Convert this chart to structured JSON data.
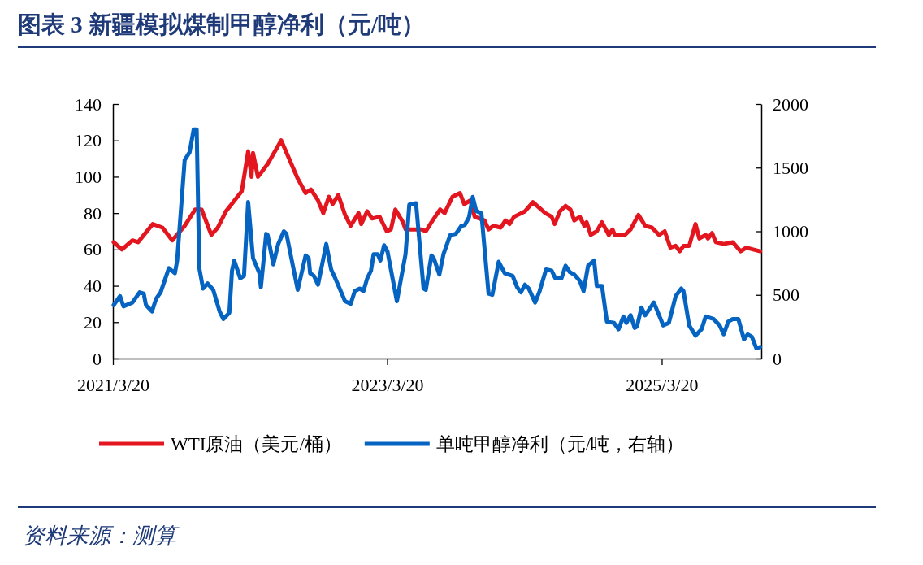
{
  "chart_data": {
    "type": "line",
    "title": "图表 3 新疆模拟煤制甲醇净利（元/吨）",
    "annotations": [
      "资料来源：测算"
    ],
    "xlim": [
      "2021-03-20",
      "2025-12-10"
    ],
    "xticks": [
      {
        "value": "2021-03-20",
        "label": "2021/3/20"
      },
      {
        "value": "2023-03-20",
        "label": "2023/3/20"
      },
      {
        "value": "2025-03-20",
        "label": "2025/3/20"
      }
    ],
    "ylim": [
      0,
      140
    ],
    "yticks": [
      0,
      20,
      40,
      60,
      80,
      100,
      120,
      140
    ],
    "y2lim": [
      0,
      2000
    ],
    "y2ticks": [
      0,
      500,
      1000,
      1500,
      2000
    ],
    "grid": false,
    "legend": "bottom",
    "marker": "none",
    "line_style": "solid",
    "series": [
      {
        "name": "WTI原油（美元/桶）",
        "color": "#e3151f",
        "x": [
          "2021-03-22",
          "2021-04-13",
          "2021-05-11",
          "2021-05-26",
          "2021-07-04",
          "2021-07-30",
          "2021-08-25",
          "2021-09-27",
          "2021-10-25",
          "2021-11-11",
          "2021-12-07",
          "2021-12-24",
          "2022-01-15",
          "2022-02-26",
          "2022-03-15",
          "2022-03-24",
          "2022-03-28",
          "2022-04-10",
          "2022-05-06",
          "2022-06-11",
          "2022-07-04",
          "2022-07-25",
          "2022-08-15",
          "2022-08-29",
          "2022-09-17",
          "2022-10-01",
          "2022-10-16",
          "2022-10-26",
          "2022-11-10",
          "2022-11-28",
          "2022-12-13",
          "2023-01-03",
          "2023-01-10",
          "2023-01-26",
          "2023-02-08",
          "2023-02-28",
          "2023-03-19",
          "2023-03-30",
          "2023-04-11",
          "2023-05-01",
          "2023-05-08",
          "2023-05-29",
          "2023-06-20",
          "2023-07-01",
          "2023-07-16",
          "2023-08-08",
          "2023-08-20",
          "2023-09-10",
          "2023-09-30",
          "2023-10-11",
          "2023-10-28",
          "2023-11-08",
          "2023-12-04",
          "2023-12-15",
          "2023-12-28",
          "2024-01-16",
          "2024-01-29",
          "2024-02-09",
          "2024-02-21",
          "2024-03-21",
          "2024-04-11",
          "2024-05-03",
          "2024-05-14",
          "2024-05-31",
          "2024-06-08",
          "2024-06-22",
          "2024-07-07",
          "2024-07-20",
          "2024-07-30",
          "2024-08-14",
          "2024-08-26",
          "2024-09-01",
          "2024-09-12",
          "2024-09-28",
          "2024-10-12",
          "2024-10-30",
          "2024-11-09",
          "2024-11-15",
          "2024-12-12",
          "2024-12-27",
          "2025-01-17",
          "2025-02-04",
          "2025-02-22",
          "2025-03-13",
          "2025-03-28",
          "2025-04-12",
          "2025-04-26",
          "2025-05-07",
          "2025-05-17",
          "2025-06-01",
          "2025-06-18",
          "2025-06-28",
          "2025-07-15",
          "2025-07-21",
          "2025-08-01",
          "2025-08-11",
          "2025-09-01",
          "2025-09-25",
          "2025-10-16",
          "2025-10-31",
          "2025-12-07"
        ],
        "values": [
          64,
          60,
          65,
          64,
          74,
          72,
          65,
          73,
          82,
          82,
          68,
          72,
          81,
          92,
          114,
          100,
          113,
          100,
          107,
          120,
          109,
          99,
          91,
          93,
          87,
          80,
          89,
          85,
          90,
          79,
          73,
          80,
          74,
          81,
          77,
          78,
          70,
          71,
          82,
          75,
          71,
          71,
          71,
          70,
          75,
          82,
          80,
          89,
          91,
          85,
          87,
          78,
          76,
          71,
          73,
          72,
          76,
          74,
          78,
          81,
          86,
          82,
          80,
          78,
          74,
          81,
          84,
          82,
          76,
          78,
          73,
          75,
          68,
          70,
          75,
          68,
          71,
          68,
          68,
          71,
          79,
          73,
          72,
          68,
          70,
          61,
          62,
          59,
          62,
          62,
          74,
          66,
          68,
          66,
          69,
          64,
          63,
          64,
          59,
          61,
          59
        ]
      },
      {
        "name": "单吨甲醇净利（元/吨，右轴）",
        "color": "#0563c1",
        "axis": "y2",
        "x": [
          "2021-03-22",
          "2021-04-08",
          "2021-04-17",
          "2021-05-11",
          "2021-05-30",
          "2021-06-10",
          "2021-06-16",
          "2021-07-02",
          "2021-07-13",
          "2021-07-25",
          "2021-08-16",
          "2021-09-01",
          "2021-09-07",
          "2021-09-27",
          "2021-10-10",
          "2021-10-21",
          "2021-10-29",
          "2021-11-05",
          "2021-11-15",
          "2021-11-27",
          "2021-12-12",
          "2021-12-29",
          "2022-01-08",
          "2022-01-24",
          "2022-01-31",
          "2022-02-06",
          "2022-02-22",
          "2022-03-04",
          "2022-03-15",
          "2022-03-28",
          "2022-04-14",
          "2022-04-18",
          "2022-05-02",
          "2022-05-06",
          "2022-05-21",
          "2022-06-03",
          "2022-06-18",
          "2022-06-25",
          "2022-07-25",
          "2022-08-15",
          "2022-08-23",
          "2022-08-27",
          "2022-09-06",
          "2022-09-17",
          "2022-10-09",
          "2022-10-22",
          "2022-11-02",
          "2022-11-28",
          "2022-12-13",
          "2022-12-24",
          "2023-01-06",
          "2023-01-16",
          "2023-01-26",
          "2023-02-05",
          "2023-02-12",
          "2023-02-23",
          "2023-03-02",
          "2023-03-12",
          "2023-03-21",
          "2023-04-15",
          "2023-05-08",
          "2023-05-18",
          "2023-06-05",
          "2023-06-25",
          "2023-07-01",
          "2023-07-16",
          "2023-07-22",
          "2023-08-06",
          "2023-08-17",
          "2023-09-04",
          "2023-09-19",
          "2023-10-03",
          "2023-10-13",
          "2023-10-24",
          "2023-11-03",
          "2023-11-12",
          "2023-11-26",
          "2023-12-15",
          "2023-12-25",
          "2024-01-11",
          "2024-01-27",
          "2024-02-17",
          "2024-02-29",
          "2024-03-10",
          "2024-03-21",
          "2024-03-31",
          "2024-04-17",
          "2024-04-29",
          "2024-05-16",
          "2024-05-31",
          "2024-06-10",
          "2024-06-26",
          "2024-07-07",
          "2024-07-18",
          "2024-07-30",
          "2024-08-14",
          "2024-08-24",
          "2024-09-05",
          "2024-09-21",
          "2024-09-28",
          "2024-10-12",
          "2024-10-25",
          "2024-11-13",
          "2024-11-25",
          "2024-12-08",
          "2024-12-16",
          "2024-12-27",
          "2025-01-07",
          "2025-01-13",
          "2025-01-25",
          "2025-02-04",
          "2025-02-27",
          "2025-03-24",
          "2025-04-08",
          "2025-04-26",
          "2025-05-11",
          "2025-05-17",
          "2025-06-01",
          "2025-06-18",
          "2025-07-04",
          "2025-07-15",
          "2025-08-05",
          "2025-08-21",
          "2025-09-01",
          "2025-09-13",
          "2025-09-25",
          "2025-10-10",
          "2025-10-25",
          "2025-11-04",
          "2025-11-15",
          "2025-11-27",
          "2025-12-07"
        ],
        "values": [
          420,
          490,
          410,
          440,
          520,
          510,
          420,
          370,
          470,
          520,
          710,
          670,
          770,
          1560,
          1620,
          1800,
          1800,
          710,
          550,
          590,
          540,
          370,
          310,
          360,
          690,
          770,
          630,
          650,
          1230,
          790,
          670,
          560,
          980,
          970,
          740,
          900,
          1000,
          980,
          540,
          810,
          790,
          670,
          650,
          580,
          900,
          700,
          630,
          450,
          430,
          530,
          550,
          530,
          630,
          690,
          820,
          820,
          770,
          890,
          840,
          450,
          820,
          1210,
          1220,
          550,
          540,
          810,
          790,
          660,
          820,
          970,
          980,
          1040,
          1050,
          1110,
          1270,
          1160,
          1140,
          510,
          500,
          760,
          670,
          650,
          560,
          520,
          580,
          550,
          440,
          530,
          700,
          690,
          630,
          630,
          730,
          680,
          660,
          610,
          530,
          730,
          770,
          570,
          570,
          290,
          280,
          230,
          330,
          280,
          340,
          240,
          250,
          400,
          340,
          440,
          260,
          280,
          490,
          550,
          530,
          260,
          180,
          230,
          330,
          310,
          260,
          190,
          290,
          310,
          310,
          150,
          190,
          170,
          80,
          90
        ]
      }
    ]
  }
}
